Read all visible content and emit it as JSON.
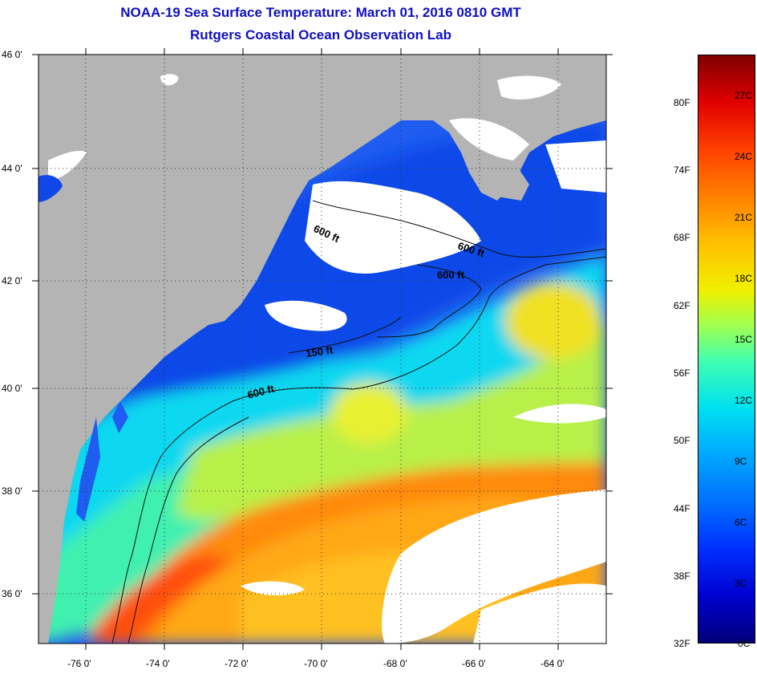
{
  "title": {
    "line1": "NOAA-19 Sea Surface Temperature:  March 01, 2016 0810 GMT",
    "line2": "Rutgers Coastal Ocean Observation Lab"
  },
  "lat_labels": [
    "46 0'",
    "44 0'",
    "42 0'",
    "40 0'",
    "38 0'",
    "36 0'"
  ],
  "lon_labels": [
    "-76 0'",
    "-74 0'",
    "-72 0'",
    "-70 0'",
    "-68 0'",
    "-66 0'",
    "-64 0'"
  ],
  "contour_labels": [
    "600 ft",
    "600 ft",
    "600 ft",
    "150 ft",
    "600 ft"
  ],
  "colorbar": {
    "f_labels": [
      "80F",
      "74F",
      "68F",
      "62F",
      "56F",
      "50F",
      "44F",
      "38F",
      "32F"
    ],
    "c_labels": [
      "27C",
      "24C",
      "21C",
      "18C",
      "15C",
      "12C",
      "9C",
      "6C",
      "3C",
      "0C"
    ]
  },
  "colors": {
    "land": "#b4b4b4",
    "cloud": "#ffffff",
    "title": "#1010c0"
  }
}
